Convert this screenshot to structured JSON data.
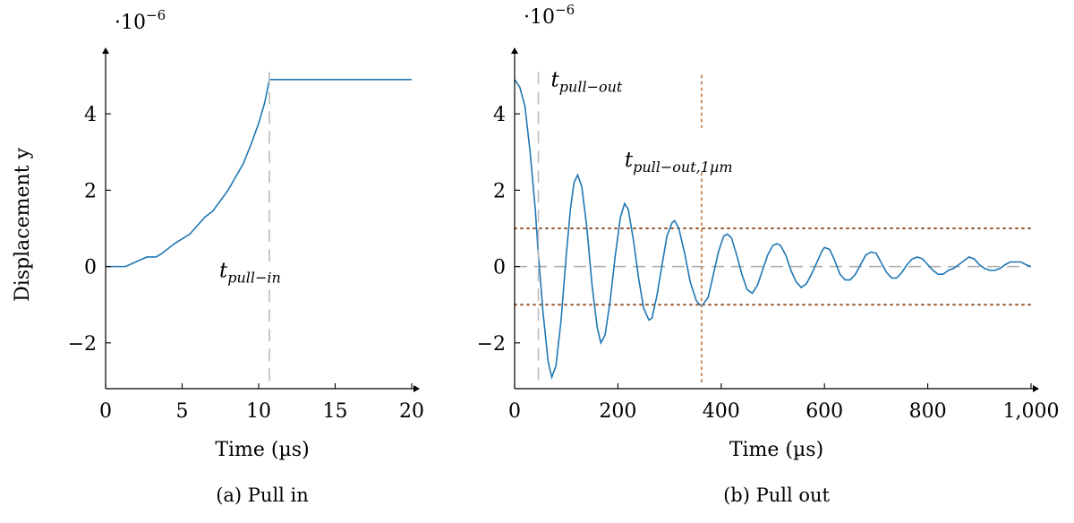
{
  "chart_data": [
    {
      "type": "line",
      "caption": "(a) Pull in",
      "xlabel": "Time (µs)",
      "ylabel": "Displacement y",
      "y_scale_label": "·10",
      "y_scale_exp": "−6",
      "xlim": [
        0,
        20
      ],
      "ylim": [
        -3.2,
        5.2
      ],
      "xticks": [
        0,
        5,
        10,
        15,
        20
      ],
      "yticks": [
        -2,
        0,
        2,
        4
      ],
      "ytick_labels": [
        "−2",
        "0",
        "2",
        "4"
      ],
      "series": [
        {
          "color": "#1f77b4",
          "x": [
            0,
            1.3,
            2.7,
            3.3,
            3.7,
            4.5,
            5.5,
            6.5,
            7.0,
            8.0,
            9.0,
            9.5,
            10.0,
            10.4,
            10.7,
            20
          ],
          "y": [
            0,
            0,
            0.25,
            0.25,
            0.35,
            0.6,
            0.85,
            1.3,
            1.45,
            2.0,
            2.7,
            3.2,
            3.75,
            4.3,
            4.9,
            4.9
          ]
        }
      ],
      "vlines": [
        {
          "x": 10.7,
          "style": "dashed",
          "color": "#bbbbbb",
          "label_main": "t",
          "label_sub": "pull−in"
        }
      ],
      "hlines": []
    },
    {
      "type": "line",
      "caption": "(b) Pull out",
      "xlabel": "Time (µs)",
      "ylabel": "",
      "y_scale_label": "·10",
      "y_scale_exp": "−6",
      "xlim": [
        0,
        1000
      ],
      "ylim": [
        -3.2,
        5.2
      ],
      "xticks": [
        0,
        200,
        400,
        600,
        800,
        1000
      ],
      "xtick_labels": [
        "0",
        "200",
        "400",
        "600",
        "800",
        "1,000"
      ],
      "yticks": [
        -2,
        0,
        2,
        4
      ],
      "ytick_labels": [
        "−2",
        "0",
        "2",
        "4"
      ],
      "series": [
        {
          "color": "#1f77b4",
          "x": [
            0,
            10,
            20,
            30,
            40,
            45,
            55,
            65,
            72,
            80,
            90,
            100,
            108,
            115,
            122,
            130,
            140,
            150,
            160,
            167,
            175,
            185,
            195,
            205,
            213,
            220,
            230,
            240,
            250,
            260,
            266,
            275,
            285,
            295,
            305,
            310,
            318,
            330,
            340,
            352,
            362,
            375,
            385,
            395,
            405,
            412,
            420,
            430,
            440,
            450,
            460,
            470,
            480,
            490,
            500,
            508,
            515,
            525,
            535,
            545,
            555,
            565,
            575,
            585,
            595,
            600,
            610,
            620,
            630,
            640,
            650,
            660,
            670,
            680,
            690,
            700,
            710,
            720,
            730,
            740,
            750,
            760,
            770,
            780,
            790,
            800,
            810,
            820,
            830,
            840,
            850,
            860,
            870,
            880,
            890,
            900,
            910,
            920,
            930,
            940,
            950,
            960,
            970,
            980,
            990,
            1000
          ],
          "y": [
            4.9,
            4.7,
            4.2,
            3.0,
            1.5,
            0.5,
            -1.2,
            -2.5,
            -2.9,
            -2.6,
            -1.4,
            0.3,
            1.5,
            2.2,
            2.4,
            2.1,
            1.0,
            -0.5,
            -1.6,
            -2.0,
            -1.8,
            -0.9,
            0.3,
            1.3,
            1.65,
            1.5,
            0.7,
            -0.3,
            -1.1,
            -1.4,
            -1.35,
            -0.8,
            0.0,
            0.8,
            1.15,
            1.2,
            1.0,
            0.3,
            -0.4,
            -0.9,
            -1.05,
            -0.8,
            -0.2,
            0.4,
            0.8,
            0.85,
            0.75,
            0.3,
            -0.2,
            -0.6,
            -0.7,
            -0.5,
            -0.1,
            0.3,
            0.55,
            0.6,
            0.55,
            0.3,
            -0.1,
            -0.4,
            -0.55,
            -0.45,
            -0.2,
            0.1,
            0.4,
            0.5,
            0.45,
            0.15,
            -0.2,
            -0.35,
            -0.35,
            -0.2,
            0.05,
            0.3,
            0.38,
            0.35,
            0.1,
            -0.15,
            -0.3,
            -0.3,
            -0.15,
            0.05,
            0.2,
            0.25,
            0.2,
            0.05,
            -0.1,
            -0.2,
            -0.2,
            -0.1,
            -0.05,
            0.05,
            0.15,
            0.25,
            0.2,
            0.05,
            -0.05,
            -0.1,
            -0.1,
            -0.05,
            0.05,
            0.12,
            0.12,
            0.12,
            0.05,
            0.0
          ]
        }
      ],
      "vlines": [
        {
          "x": 46,
          "style": "dashed",
          "color": "#bbbbbb",
          "label_main": "t",
          "label_sub": "pull−out"
        },
        {
          "x": 362,
          "style": "dotted",
          "color": "#cc8b5a",
          "label_main": "t",
          "label_sub": "pull−out,1µm"
        }
      ],
      "hlines": [
        {
          "y": 0,
          "style": "dashed",
          "color": "#aaaaaa"
        },
        {
          "y": 1,
          "style": "dotted",
          "color": "#9b5a2e"
        },
        {
          "y": -1,
          "style": "dotted",
          "color": "#9b5a2e"
        }
      ]
    }
  ]
}
